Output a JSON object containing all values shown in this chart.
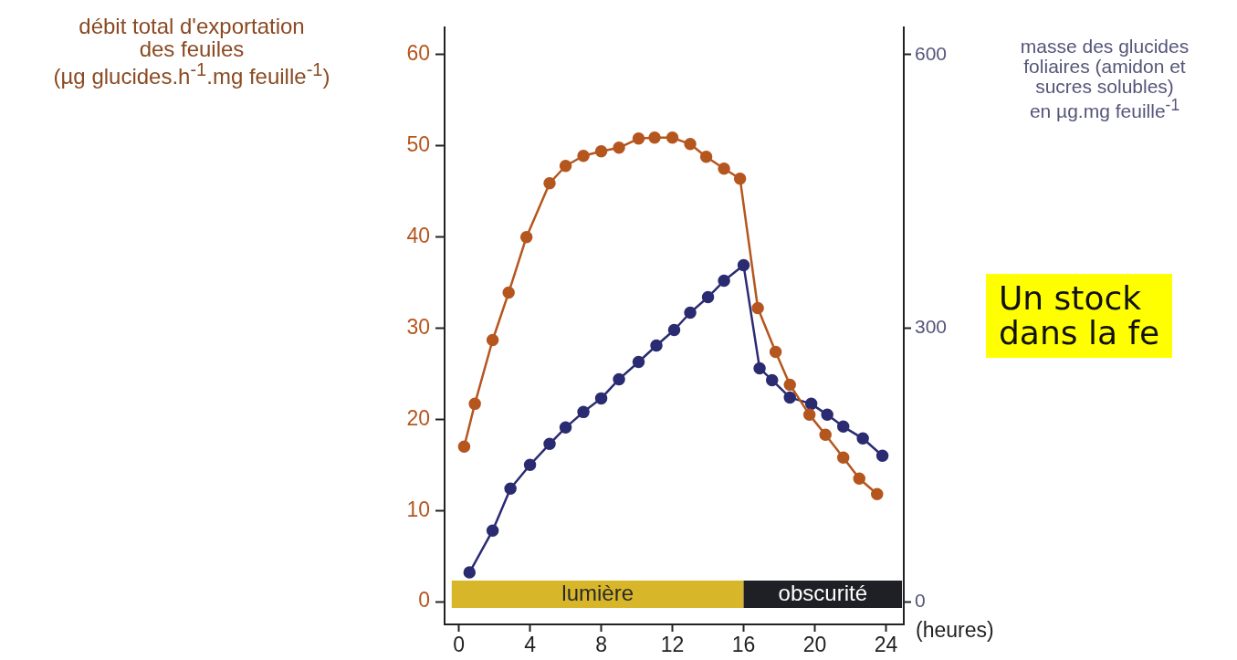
{
  "chart_data": {
    "type": "line",
    "xlabel": "(heures)",
    "ylabel": "débit total d'exportation\ndes feuiles\n(µg glucides.h$^{-1}$.mg feuille$^{-1}$)",
    "y2label": "masse des glucides\nfoliaires (amidon et\nsucres solubles)\nen µg.mg feuille$^{-1}$",
    "xlim": [
      -0.8,
      25
    ],
    "xticks": [
      0,
      4,
      8,
      12,
      16,
      20,
      24
    ],
    "ylim": [
      -2.5,
      63
    ],
    "yticks": [
      0,
      10,
      20,
      30,
      40,
      50,
      60
    ],
    "y2lim": [
      -25,
      630
    ],
    "y2ticks": [
      0,
      300,
      600
    ],
    "series": [
      {
        "color": "#b5561f",
        "x": [
          0.3,
          0.9,
          1.9,
          2.8,
          3.8,
          5.1,
          6,
          7,
          8,
          9,
          10.1,
          11,
          12,
          13,
          13.9,
          14.9,
          15.8,
          16.8,
          17.8,
          18.6,
          19.7,
          20.6,
          21.6,
          22.5,
          23.5
        ],
        "values": [
          17.0,
          21.7,
          28.7,
          33.9,
          40.0,
          45.9,
          47.8,
          48.9,
          49.4,
          49.8,
          50.8,
          50.9,
          50.9,
          50.2,
          48.8,
          47.5,
          46.4,
          32.2,
          27.4,
          23.8,
          20.5,
          18.3,
          15.8,
          13.5,
          11.8
        ]
      },
      {
        "color": "#2b2b72",
        "axis": "y2",
        "x": [
          0.6,
          1.9,
          2.9,
          4.0,
          5.1,
          6.0,
          7.0,
          8.0,
          9.0,
          10.1,
          11.1,
          12.1,
          13.0,
          14.0,
          14.9,
          16.0,
          16.9,
          17.6,
          18.6,
          19.8,
          20.7,
          21.6,
          22.7,
          23.8
        ],
        "values": [
          32,
          78,
          124,
          150,
          173,
          191,
          208,
          223,
          244,
          263,
          281,
          298,
          317,
          334,
          352,
          369,
          256,
          243,
          224,
          217,
          205,
          192,
          179,
          160
        ]
      }
    ],
    "bands": [
      {
        "axis": "x",
        "from": -0.4,
        "to": 16,
        "label": "lumière",
        "color": "#d8b62a"
      },
      {
        "axis": "x",
        "from": 16,
        "to": 24.9,
        "label": "obscurité",
        "color": "#1f1f26"
      }
    ],
    "annotations": [
      "Un stock\ndans la fe"
    ],
    "marker": "circle",
    "line_style": "solid",
    "grid": false,
    "legend": false
  }
}
